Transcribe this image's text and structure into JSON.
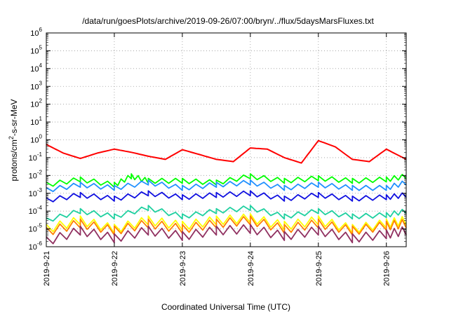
{
  "chart_data": {
    "type": "line",
    "title": "/data/run/goesPlots/archive/2019-09-26/07:00/bryn/../flux/5daysMarsFluxes.txt",
    "xlabel": "Coordinated Universal Time (UTC)",
    "ylabel": "protons/cm²-s-sr-MeV",
    "ylabel_parts": {
      "pre": "protons/cm",
      "sup": "2",
      "post": "-s-sr-MeV"
    },
    "x_unit": "day",
    "xlim": [
      "2019-09-21T00:00",
      "2019-09-26T07:00"
    ],
    "y_scale": "log",
    "ylim": [
      1e-06,
      1000000
    ],
    "grid": true,
    "x_tick_labels": [
      "2019-9-21",
      "2019-9-22",
      "2019-9-23",
      "2019-9-24",
      "2019-9-25",
      "2019-9-26"
    ],
    "y_tick_labels": [
      {
        "base": "10",
        "exp": "-6"
      },
      {
        "base": "10",
        "exp": "-5"
      },
      {
        "base": "10",
        "exp": "-4"
      },
      {
        "base": "10",
        "exp": "-3"
      },
      {
        "base": "10",
        "exp": "-2"
      },
      {
        "base": "10",
        "exp": "-1"
      },
      {
        "base": "10",
        "exp": "0"
      },
      {
        "base": "10",
        "exp": "1"
      },
      {
        "base": "10",
        "exp": "2"
      },
      {
        "base": "10",
        "exp": "3"
      },
      {
        "base": "10",
        "exp": "4"
      },
      {
        "base": "10",
        "exp": "5"
      },
      {
        "base": "10",
        "exp": "6"
      }
    ],
    "series": [
      {
        "color": "#ff0000",
        "x": [
          "2019-09-21T00:00",
          "2019-09-21T06:00",
          "2019-09-21T12:00",
          "2019-09-21T18:00",
          "2019-09-22T00:00",
          "2019-09-22T06:00",
          "2019-09-22T12:00",
          "2019-09-22T18:00",
          "2019-09-23T00:00",
          "2019-09-23T06:00",
          "2019-09-23T12:00",
          "2019-09-23T18:00",
          "2019-09-24T00:00",
          "2019-09-24T06:00",
          "2019-09-24T12:00",
          "2019-09-24T18:00",
          "2019-09-25T00:00",
          "2019-09-25T06:00",
          "2019-09-25T12:00",
          "2019-09-25T18:00",
          "2019-09-26T00:00",
          "2019-09-26T07:00"
        ],
        "y": [
          0.55,
          0.18,
          0.09,
          0.18,
          0.3,
          0.2,
          0.12,
          0.08,
          0.28,
          0.15,
          0.08,
          0.06,
          0.35,
          0.3,
          0.1,
          0.05,
          0.9,
          0.4,
          0.08,
          0.06,
          0.3,
          0.08
        ]
      },
      {
        "color": "#00ff00",
        "x": [
          "2019-09-21T00:00",
          "2019-09-21T12:00",
          "2019-09-22T00:00",
          "2019-09-22T06:00",
          "2019-09-22T12:00",
          "2019-09-23T00:00",
          "2019-09-23T12:00",
          "2019-09-24T00:00",
          "2019-09-24T12:00",
          "2019-09-25T00:00",
          "2019-09-25T12:00",
          "2019-09-26T00:00",
          "2019-09-26T07:00"
        ],
        "y": [
          0.003,
          0.006,
          0.003,
          0.009,
          0.005,
          0.005,
          0.004,
          0.009,
          0.005,
          0.007,
          0.005,
          0.006,
          0.009
        ]
      },
      {
        "color": "#2090ff",
        "x": [
          "2019-09-21T00:00",
          "2019-09-21T12:00",
          "2019-09-22T00:00",
          "2019-09-22T12:00",
          "2019-09-23T00:00",
          "2019-09-23T12:00",
          "2019-09-24T00:00",
          "2019-09-24T12:00",
          "2019-09-25T00:00",
          "2019-09-25T12:00",
          "2019-09-26T00:00",
          "2019-09-26T07:00"
        ],
        "y": [
          0.0015,
          0.003,
          0.002,
          0.004,
          0.002,
          0.003,
          0.004,
          0.002,
          0.003,
          0.002,
          0.002,
          0.004
        ]
      },
      {
        "color": "#1010e0",
        "x": [
          "2019-09-21T00:00",
          "2019-09-21T12:00",
          "2019-09-22T00:00",
          "2019-09-22T12:00",
          "2019-09-23T00:00",
          "2019-09-23T12:00",
          "2019-09-24T00:00",
          "2019-09-24T12:00",
          "2019-09-25T00:00",
          "2019-09-25T12:00",
          "2019-09-26T00:00",
          "2019-09-26T07:00"
        ],
        "y": [
          0.0004,
          0.0008,
          0.0005,
          0.001,
          0.0006,
          0.0008,
          0.001,
          0.0005,
          0.0008,
          0.0005,
          0.0006,
          0.0008
        ]
      },
      {
        "color": "#20d0a0",
        "x": [
          "2019-09-21T00:00",
          "2019-09-21T12:00",
          "2019-09-22T00:00",
          "2019-09-22T12:00",
          "2019-09-23T00:00",
          "2019-09-23T12:00",
          "2019-09-24T00:00",
          "2019-09-24T12:00",
          "2019-09-25T00:00",
          "2019-09-25T12:00",
          "2019-09-26T00:00",
          "2019-09-26T07:00"
        ],
        "y": [
          3e-05,
          0.0001,
          5e-05,
          0.00015,
          5e-05,
          0.0001,
          0.00015,
          5e-05,
          0.0001,
          5e-05,
          6e-05,
          0.0001
        ]
      },
      {
        "color": "#ffff00",
        "x": [
          "2019-09-21T00:00",
          "2019-09-21T12:00",
          "2019-09-22T00:00",
          "2019-09-22T12:00",
          "2019-09-23T00:00",
          "2019-09-23T12:00",
          "2019-09-24T00:00",
          "2019-09-24T12:00",
          "2019-09-25T00:00",
          "2019-09-25T12:00",
          "2019-09-26T00:00",
          "2019-09-26T07:00"
        ],
        "y": [
          1e-05,
          3e-05,
          1e-05,
          3e-05,
          1.5e-05,
          3e-05,
          4e-05,
          1.5e-05,
          3e-05,
          1e-05,
          2e-05,
          3e-05
        ]
      },
      {
        "color": "#ff8000",
        "x": [
          "2019-09-21T00:00",
          "2019-09-21T12:00",
          "2019-09-22T00:00",
          "2019-09-22T12:00",
          "2019-09-23T00:00",
          "2019-09-23T12:00",
          "2019-09-24T00:00",
          "2019-09-24T12:00",
          "2019-09-25T00:00",
          "2019-09-25T12:00",
          "2019-09-26T00:00",
          "2019-09-26T07:00"
        ],
        "y": [
          7e-06,
          2e-05,
          8e-06,
          2e-05,
          1e-05,
          2e-05,
          3e-05,
          1e-05,
          2e-05,
          8e-06,
          1.5e-05,
          2e-05
        ]
      },
      {
        "color": "#903060",
        "x": [
          "2019-09-21T00:00",
          "2019-09-21T12:00",
          "2019-09-22T00:00",
          "2019-09-22T12:00",
          "2019-09-23T00:00",
          "2019-09-23T12:00",
          "2019-09-24T00:00",
          "2019-09-24T12:00",
          "2019-09-25T00:00",
          "2019-09-25T12:00",
          "2019-09-26T00:00",
          "2019-09-26T07:00"
        ],
        "y": [
          2e-06,
          8e-06,
          3e-06,
          8e-06,
          4e-06,
          8e-06,
          1e-05,
          4e-06,
          8e-06,
          3e-06,
          5e-06,
          8e-06
        ]
      }
    ]
  }
}
